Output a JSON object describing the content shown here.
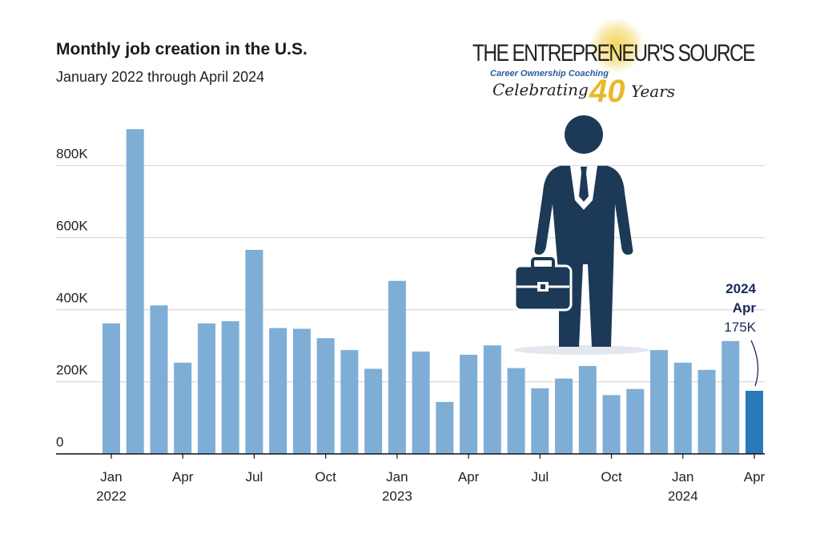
{
  "chart_data": {
    "type": "bar",
    "title": "Monthly job creation in the U.S.",
    "subtitle": "January 2022 through April 2024",
    "xlabel": "",
    "ylabel": "",
    "ylim": [
      0,
      950000
    ],
    "yticks": [
      0,
      200000,
      400000,
      600000,
      800000
    ],
    "ytick_labels": [
      "0",
      "200K",
      "400K",
      "600K",
      "800K"
    ],
    "grid": true,
    "categories": [
      "Jan 2022",
      "Feb 2022",
      "Mar 2022",
      "Apr 2022",
      "May 2022",
      "Jun 2022",
      "Jul 2022",
      "Aug 2022",
      "Sep 2022",
      "Oct 2022",
      "Nov 2022",
      "Dec 2022",
      "Jan 2023",
      "Feb 2023",
      "Mar 2023",
      "Apr 2023",
      "May 2023",
      "Jun 2023",
      "Jul 2023",
      "Aug 2023",
      "Sep 2023",
      "Oct 2023",
      "Nov 2023",
      "Dec 2023",
      "Jan 2024",
      "Feb 2024",
      "Mar 2024",
      "Apr 2024"
    ],
    "values": [
      362000,
      901000,
      412000,
      253000,
      362000,
      368000,
      566000,
      349000,
      347000,
      321000,
      288000,
      236000,
      480000,
      284000,
      144000,
      275000,
      301000,
      238000,
      182000,
      209000,
      244000,
      163000,
      180000,
      288000,
      253000,
      233000,
      313000,
      175000
    ],
    "xtick_labels": [
      {
        "index": 0,
        "month": "Jan",
        "year": "2022"
      },
      {
        "index": 3,
        "month": "Apr",
        "year": ""
      },
      {
        "index": 6,
        "month": "Jul",
        "year": ""
      },
      {
        "index": 9,
        "month": "Oct",
        "year": ""
      },
      {
        "index": 12,
        "month": "Jan",
        "year": "2023"
      },
      {
        "index": 15,
        "month": "Apr",
        "year": ""
      },
      {
        "index": 18,
        "month": "Jul",
        "year": ""
      },
      {
        "index": 21,
        "month": "Oct",
        "year": ""
      },
      {
        "index": 24,
        "month": "Jan",
        "year": "2024"
      },
      {
        "index": 27,
        "month": "Apr",
        "year": ""
      }
    ],
    "annotation": {
      "index": 27,
      "year": "2024",
      "month": "Apr",
      "value_label": "175K"
    },
    "colors": {
      "bar": "#7eaed6",
      "highlight": "#2a78b8",
      "annotation": "#1a2a5c",
      "figure": "#1c3a57",
      "grid": "#d0d0d0"
    }
  },
  "logo": {
    "line1": "THE ENTREPRENEUR'S SOURCE",
    "line2": "Career Ownership Coaching",
    "line3": "Celebrating",
    "number": "40",
    "line4": "Years"
  }
}
